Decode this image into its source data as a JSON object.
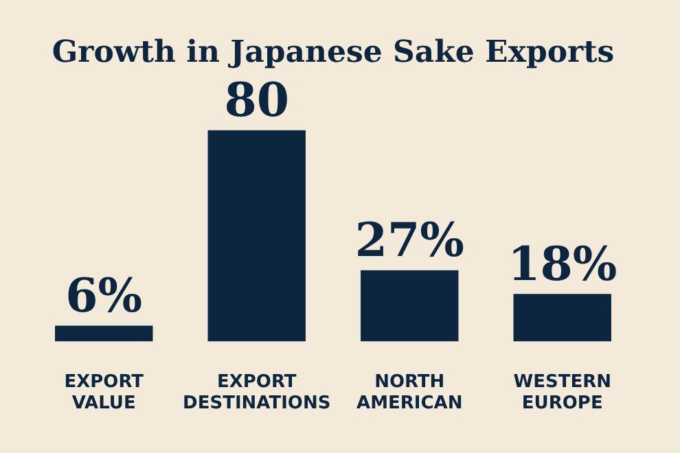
{
  "chart_data": {
    "type": "bar",
    "title": "Growth in Japanese Sake Exports",
    "tick_labels": "x",
    "categories": [
      "EXPORT VALUE",
      "EXPORT DESTINATIONS",
      "NORTH AMERICAN",
      "WESTERN EUROPE"
    ],
    "values": [
      6,
      80,
      27,
      18
    ],
    "value_labels": [
      "6%",
      "80",
      "27%",
      "18%"
    ],
    "color": "#0d2640"
  }
}
